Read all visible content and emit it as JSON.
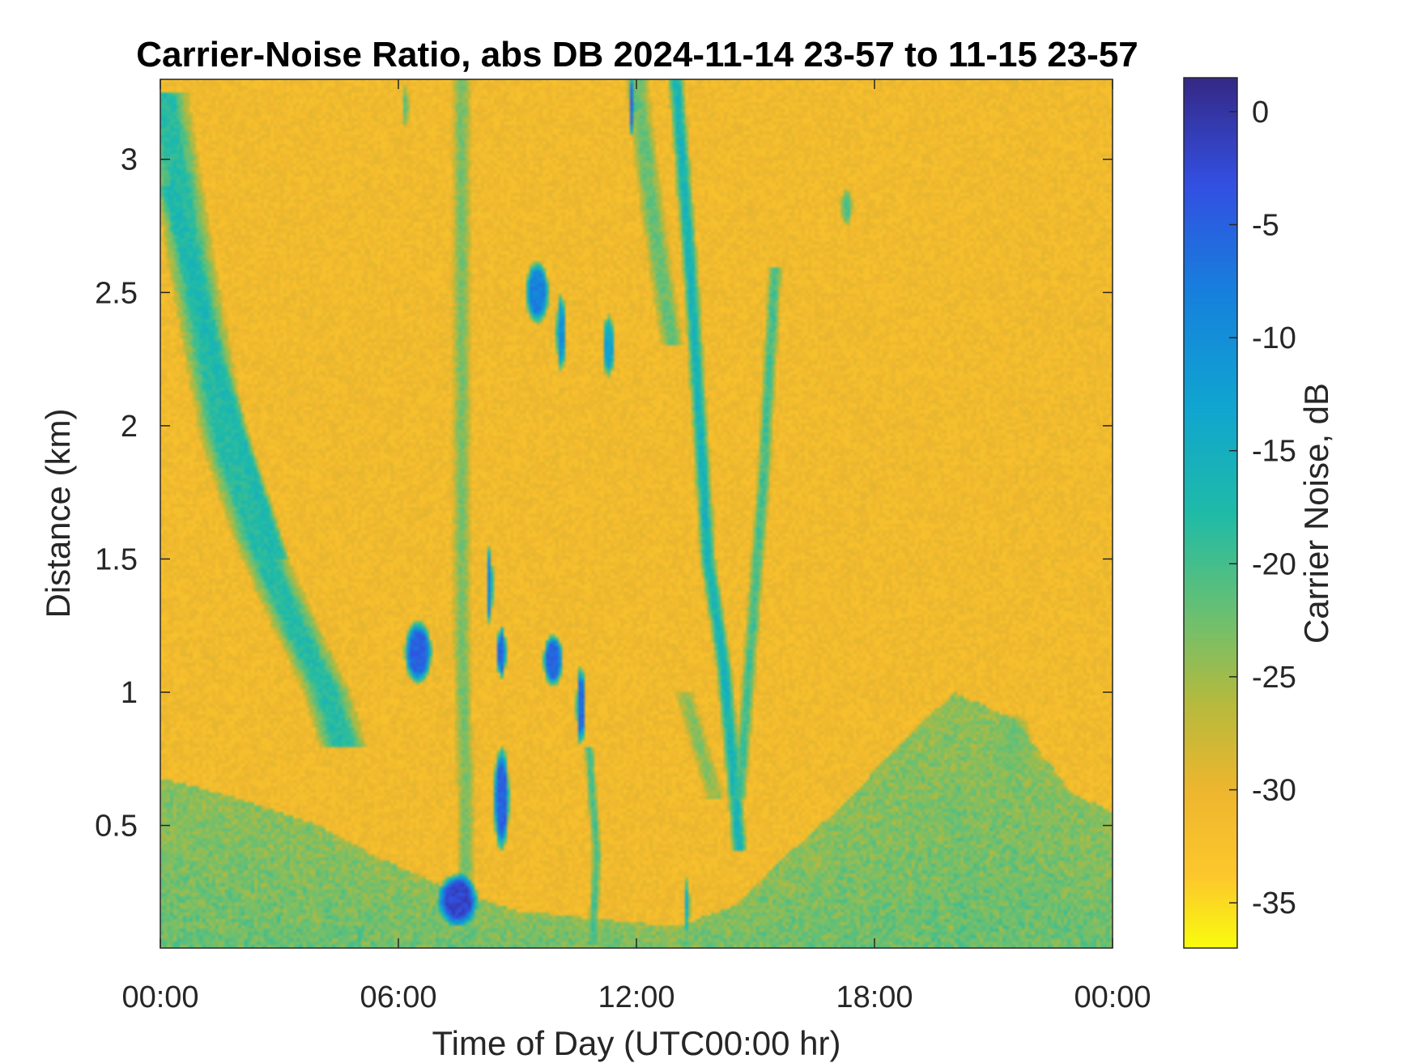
{
  "chart_data": {
    "type": "heatmap",
    "title": "Carrier-Noise Ratio, abs DB 2024-11-14 23-57 to 11-15 23-57",
    "xlabel": "Time of Day (UTC00:00 hr)",
    "ylabel": "Distance (km)",
    "x_range_hours": [
      0,
      24
    ],
    "y_range_km": [
      0.04,
      3.3
    ],
    "x_ticks": [
      {
        "value": 0,
        "label": "00:00"
      },
      {
        "value": 6,
        "label": "06:00"
      },
      {
        "value": 12,
        "label": "12:00"
      },
      {
        "value": 18,
        "label": "18:00"
      },
      {
        "value": 24,
        "label": "00:00"
      }
    ],
    "y_ticks": [
      {
        "value": 0.5,
        "label": "0.5"
      },
      {
        "value": 1.0,
        "label": "1"
      },
      {
        "value": 1.5,
        "label": "1.5"
      },
      {
        "value": 2.0,
        "label": "2"
      },
      {
        "value": 2.5,
        "label": "2.5"
      },
      {
        "value": 3.0,
        "label": "3"
      }
    ],
    "colorbar": {
      "label": "Carrier Noise, dB",
      "range": [
        -37,
        1.5
      ],
      "colormap": "parula",
      "ticks": [
        {
          "value": 0,
          "label": "0"
        },
        {
          "value": -5,
          "label": "-5"
        },
        {
          "value": -10,
          "label": "-10"
        },
        {
          "value": -15,
          "label": "-15"
        },
        {
          "value": -20,
          "label": "-20"
        },
        {
          "value": -25,
          "label": "-25"
        },
        {
          "value": -30,
          "label": "-30"
        },
        {
          "value": -35,
          "label": "-35"
        }
      ]
    },
    "background_value_db": -31,
    "features": [
      {
        "kind": "line",
        "pts": [
          [
            0.1,
            3.25
          ],
          [
            0.8,
            2.6
          ],
          [
            1.6,
            1.95
          ],
          [
            2.5,
            1.55
          ],
          [
            3.4,
            1.25
          ],
          [
            4.2,
            1.0
          ],
          [
            4.6,
            0.8
          ]
        ],
        "value": -18,
        "width_h": 1.2
      },
      {
        "kind": "line",
        "pts": [
          [
            0.2,
            2.9
          ],
          [
            1.5,
            2.2
          ],
          [
            3.0,
            1.5
          ]
        ],
        "value": -17,
        "width_h": 0.5
      },
      {
        "kind": "line",
        "pts": [
          [
            7.6,
            3.3
          ],
          [
            7.6,
            1.2
          ],
          [
            7.7,
            0.6
          ],
          [
            7.7,
            0.1
          ]
        ],
        "value": -23,
        "width_h": 0.45
      },
      {
        "kind": "line",
        "pts": [
          [
            13.0,
            3.3
          ],
          [
            13.4,
            2.5
          ],
          [
            13.8,
            1.5
          ],
          [
            14.2,
            1.1
          ],
          [
            14.5,
            0.6
          ],
          [
            14.6,
            0.4
          ]
        ],
        "value": -16,
        "width_h": 0.4
      },
      {
        "kind": "line",
        "pts": [
          [
            15.5,
            2.6
          ],
          [
            15.2,
            1.8
          ],
          [
            14.9,
            1.2
          ],
          [
            14.6,
            0.6
          ]
        ],
        "value": -20,
        "width_h": 0.35
      },
      {
        "kind": "line",
        "pts": [
          [
            12.0,
            3.3
          ],
          [
            12.4,
            2.8
          ],
          [
            12.9,
            2.3
          ]
        ],
        "value": -22,
        "width_h": 0.6
      },
      {
        "kind": "line",
        "pts": [
          [
            10.8,
            0.8
          ],
          [
            11.0,
            0.4
          ],
          [
            10.9,
            0.05
          ]
        ],
        "value": -20,
        "width_h": 0.25
      },
      {
        "kind": "line",
        "pts": [
          [
            13.2,
            1.0
          ],
          [
            13.6,
            0.8
          ],
          [
            14.0,
            0.6
          ]
        ],
        "value": -24,
        "width_h": 0.5
      },
      {
        "kind": "ellipse",
        "cx": 9.5,
        "cy": 2.5,
        "rx": 0.3,
        "ry": 0.12,
        "value": -8
      },
      {
        "kind": "ellipse",
        "cx": 10.1,
        "cy": 2.35,
        "rx": 0.12,
        "ry": 0.15,
        "value": -11
      },
      {
        "kind": "ellipse",
        "cx": 11.3,
        "cy": 2.3,
        "rx": 0.15,
        "ry": 0.12,
        "value": -13
      },
      {
        "kind": "ellipse",
        "cx": 6.5,
        "cy": 1.15,
        "rx": 0.35,
        "ry": 0.12,
        "value": -5
      },
      {
        "kind": "ellipse",
        "cx": 8.6,
        "cy": 1.15,
        "rx": 0.12,
        "ry": 0.1,
        "value": -6
      },
      {
        "kind": "ellipse",
        "cx": 9.9,
        "cy": 1.12,
        "rx": 0.25,
        "ry": 0.1,
        "value": -5
      },
      {
        "kind": "ellipse",
        "cx": 10.6,
        "cy": 0.95,
        "rx": 0.12,
        "ry": 0.15,
        "value": -6
      },
      {
        "kind": "ellipse",
        "cx": 8.3,
        "cy": 1.4,
        "rx": 0.08,
        "ry": 0.15,
        "value": -9
      },
      {
        "kind": "ellipse",
        "cx": 8.6,
        "cy": 0.6,
        "rx": 0.2,
        "ry": 0.2,
        "value": -5
      },
      {
        "kind": "ellipse",
        "cx": 7.5,
        "cy": 0.22,
        "rx": 0.5,
        "ry": 0.1,
        "value": -2
      },
      {
        "kind": "ellipse",
        "cx": 17.3,
        "cy": 2.82,
        "rx": 0.15,
        "ry": 0.07,
        "value": -21
      },
      {
        "kind": "ellipse",
        "cx": 21.5,
        "cy": 0.8,
        "rx": 0.5,
        "ry": 0.12,
        "value": -23
      },
      {
        "kind": "ellipse",
        "cx": 11.9,
        "cy": 3.2,
        "rx": 0.06,
        "ry": 0.12,
        "value": -6
      },
      {
        "kind": "ellipse",
        "cx": 6.2,
        "cy": 3.2,
        "rx": 0.05,
        "ry": 0.12,
        "value": -18
      },
      {
        "kind": "ellipse",
        "cx": 13.3,
        "cy": 0.2,
        "rx": 0.05,
        "ry": 0.15,
        "value": -12
      }
    ],
    "boundary_layer": [
      {
        "t": 0,
        "top_km": 0.68
      },
      {
        "t": 2,
        "top_km": 0.6
      },
      {
        "t": 4,
        "top_km": 0.5
      },
      {
        "t": 5.5,
        "top_km": 0.38
      },
      {
        "t": 7,
        "top_km": 0.28
      },
      {
        "t": 9,
        "top_km": 0.18
      },
      {
        "t": 11,
        "top_km": 0.15
      },
      {
        "t": 13,
        "top_km": 0.12
      },
      {
        "t": 14.5,
        "top_km": 0.2
      },
      {
        "t": 15.5,
        "top_km": 0.35
      },
      {
        "t": 17,
        "top_km": 0.55
      },
      {
        "t": 18.5,
        "top_km": 0.78
      },
      {
        "t": 20,
        "top_km": 1.0
      },
      {
        "t": 21.5,
        "top_km": 0.9
      },
      {
        "t": 23,
        "top_km": 0.62
      },
      {
        "t": 24,
        "top_km": 0.55
      }
    ],
    "boundary_layer_value_db": -22
  }
}
